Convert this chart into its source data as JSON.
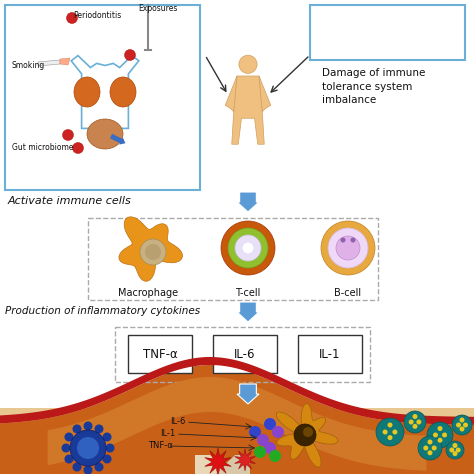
{
  "bg_color": "#ffffff",
  "risk_factors": [
    "Periodontitis",
    "Exposures",
    "Smoking",
    "Gut microbiome"
  ],
  "damage_text": "Damage of immune\ntolerance system\nimbalance",
  "activate_text": "Activate immune cells",
  "cells": [
    "Macrophage",
    "T-cell",
    "B-cell"
  ],
  "production_text": "Production of inflammatory cytokines",
  "cytokines": [
    "TNF-α",
    "IL-6",
    "IL-1"
  ],
  "labels_bottom": [
    "IL-6",
    "IL-1",
    "TNF-α"
  ],
  "arrow_color": "#5b9bd5",
  "shirt_color": "#6baed6",
  "lung_color": "#d4681e",
  "gut_color": "#c8834e",
  "red_spot": "#cc2222",
  "human_color": "#f0c080",
  "macrophage_outer": "#e8941a",
  "macrophage_nuc": "#c8b090",
  "tcell_outer": "#c8580a",
  "tcell_ring": "#90c030",
  "tcell_inner": "#e8e0f8",
  "bcell_outer": "#e8a840",
  "bcell_inner": "#e0b0e8",
  "tissue_red": "#cc2020",
  "tissue_orange": "#c86820",
  "tissue_brown": "#a84010",
  "tissue_skin": "#e8c090",
  "dend_color": "#d48810",
  "blue_cell": "#2244aa",
  "teal_cell": "#107878",
  "yellow_dot": "#e8c820",
  "dot_blue": "#3344cc",
  "dot_purple": "#8844cc",
  "dot_green": "#22aa22"
}
